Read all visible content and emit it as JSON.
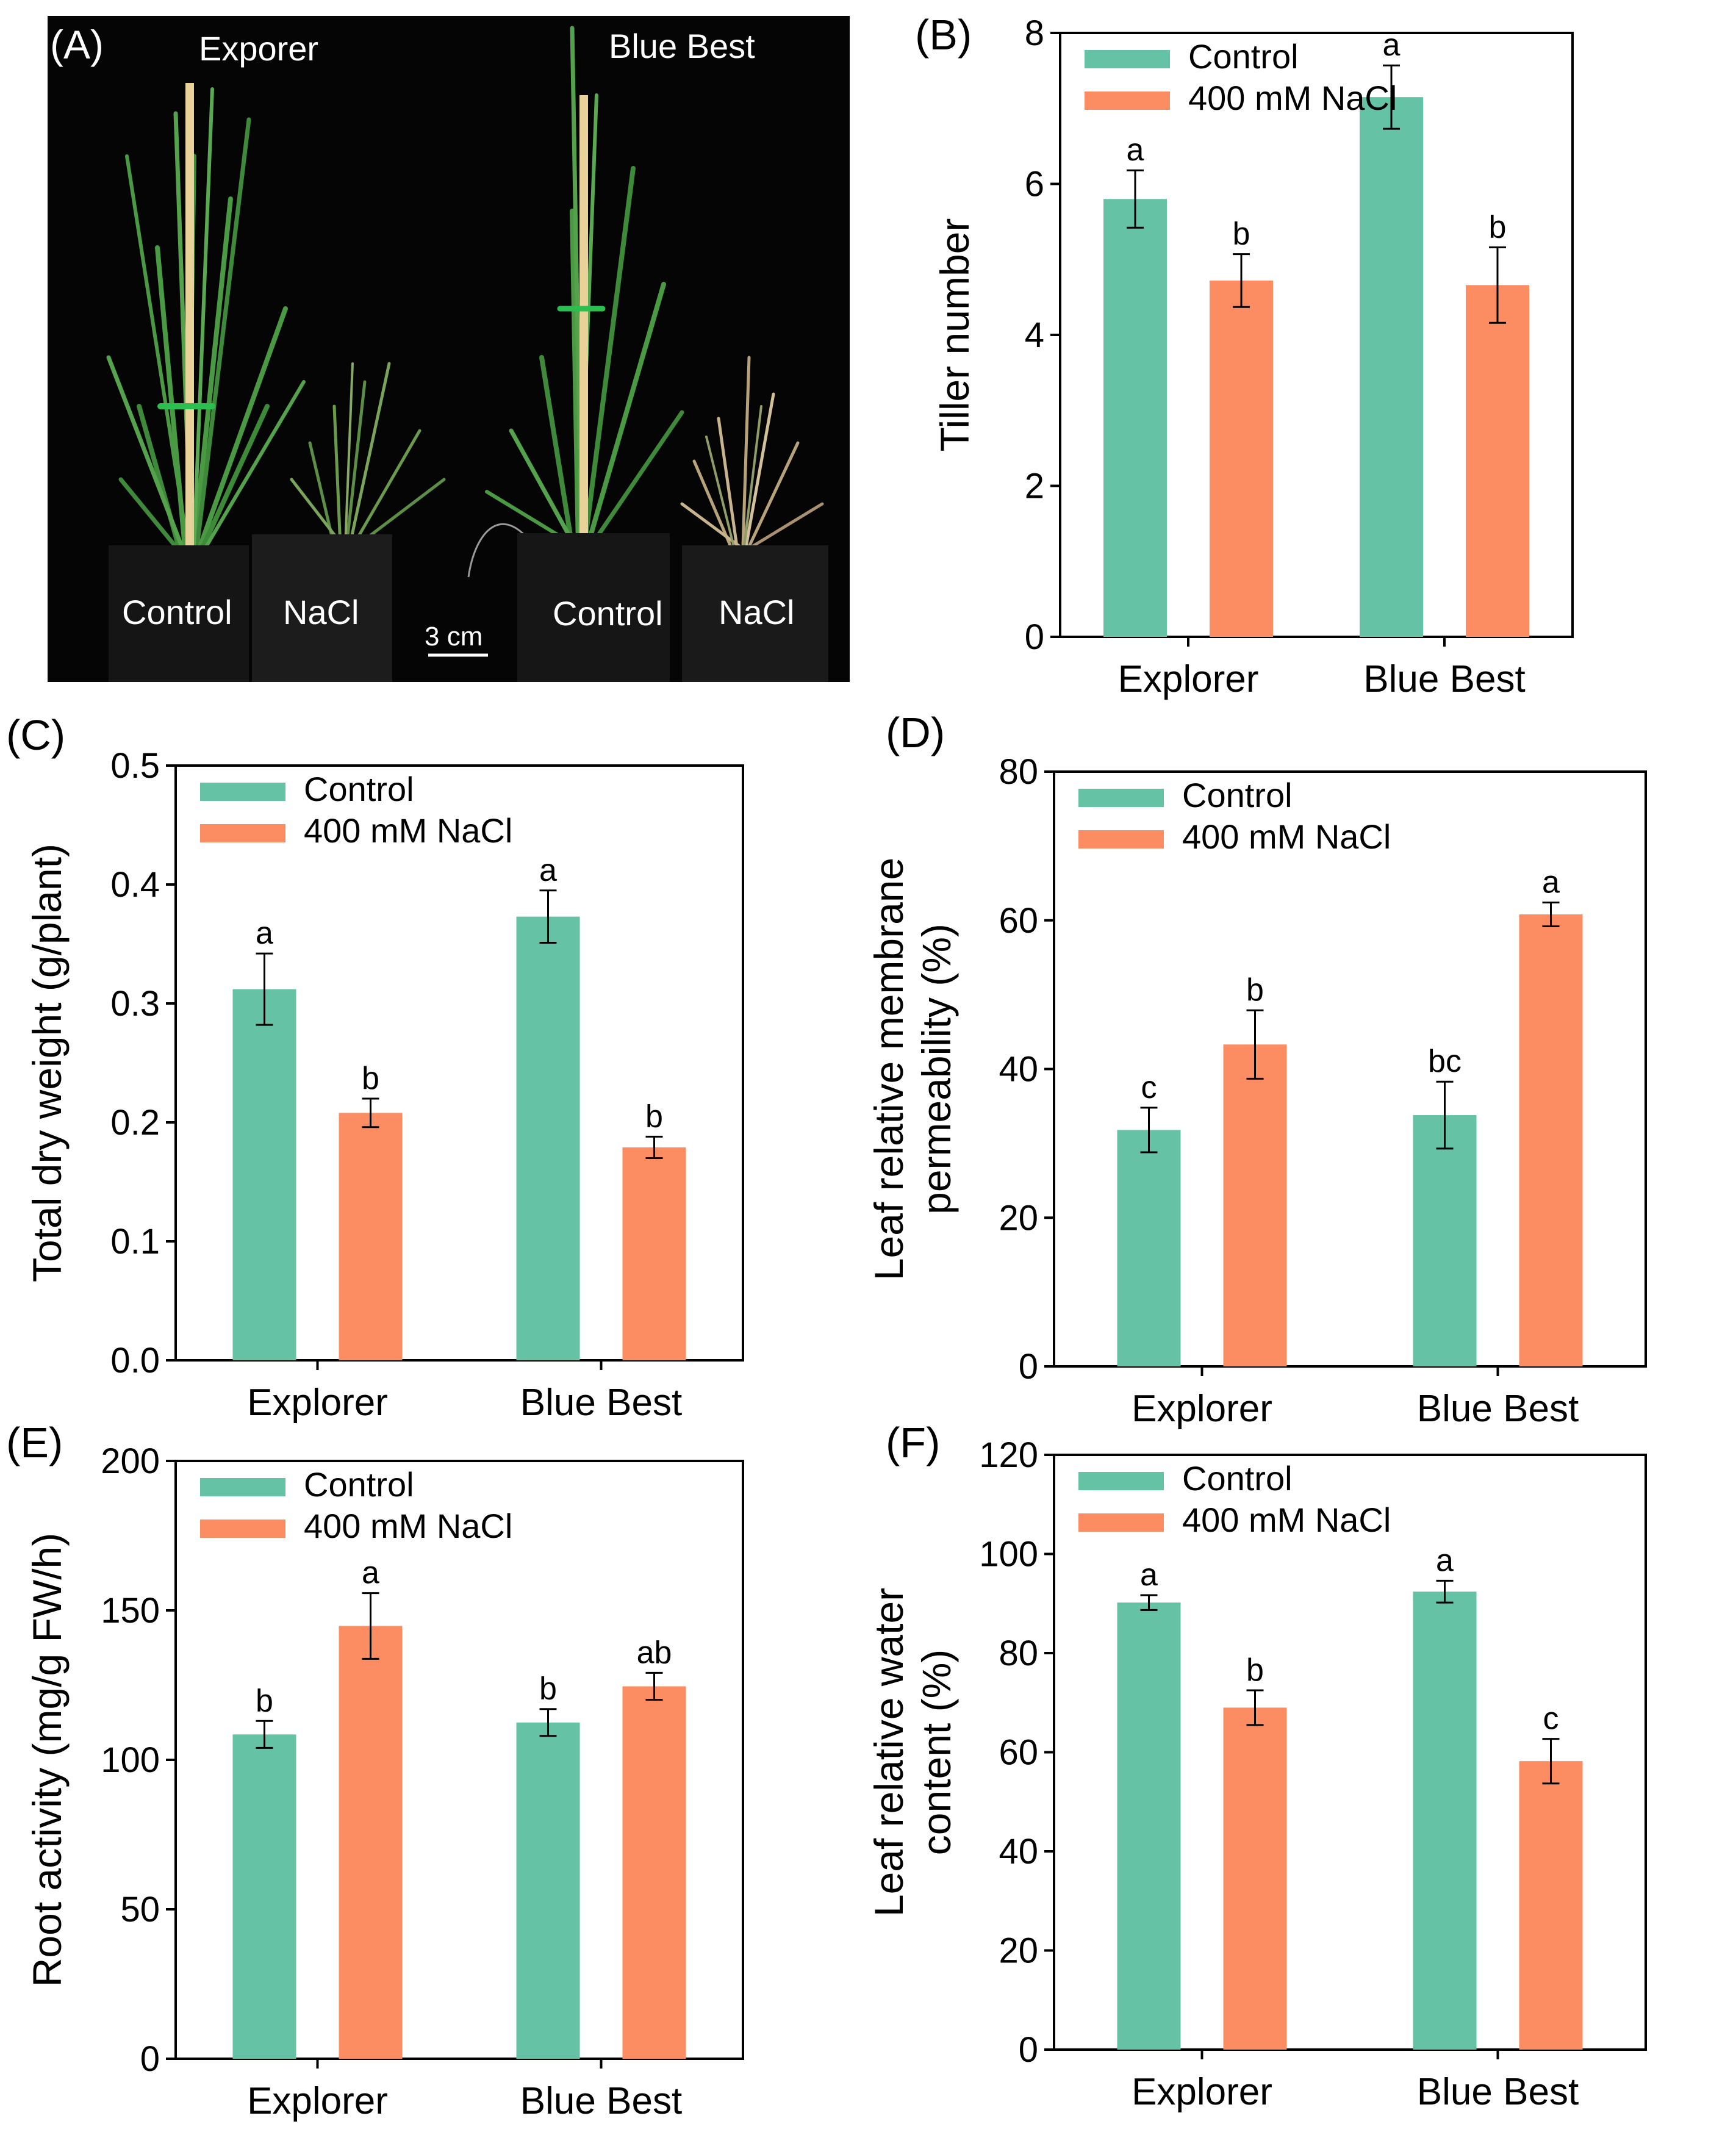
{
  "colors": {
    "control": "#66c2a5",
    "nacl": "#fc8d62",
    "axis": "#000000",
    "photo_bg": "#050505"
  },
  "photo_panel": {
    "panel_label": "(A)",
    "cultivar_left": "Exporer",
    "cultivar_right": "Blue Best",
    "pot_labels": [
      "Control",
      "NaCl",
      "Control",
      "NaCl"
    ],
    "scale_bar": "3 cm"
  },
  "chart_data": [
    {
      "id": "B",
      "panel_label": "(B)",
      "type": "bar",
      "categories": [
        "Explorer",
        "Blue Best"
      ],
      "series": [
        {
          "name": "Control",
          "values": [
            5.8,
            7.15
          ],
          "errors": [
            0.38,
            0.42
          ],
          "letters": [
            "a",
            "a"
          ]
        },
        {
          "name": "400 mM NaCl",
          "values": [
            4.72,
            4.66
          ],
          "errors": [
            0.35,
            0.5
          ],
          "letters": [
            "b",
            "b"
          ]
        }
      ],
      "ylabel": [
        "Tiller number"
      ],
      "ylim": [
        0,
        8
      ],
      "yticks": [
        0,
        2,
        4,
        6,
        8
      ],
      "legend": "top-left"
    },
    {
      "id": "C",
      "panel_label": "(C)",
      "type": "bar",
      "categories": [
        "Explorer",
        "Blue Best"
      ],
      "series": [
        {
          "name": "Control",
          "values": [
            0.312,
            0.373
          ],
          "errors": [
            0.03,
            0.022
          ],
          "letters": [
            "a",
            "a"
          ]
        },
        {
          "name": "400 mM NaCl",
          "values": [
            0.208,
            0.179
          ],
          "errors": [
            0.012,
            0.009
          ],
          "letters": [
            "b",
            "b"
          ]
        }
      ],
      "ylabel": [
        "Total dry weight (g/plant)"
      ],
      "ylim": [
        0,
        0.5
      ],
      "yticks": [
        "0.0",
        "0.1",
        "0.2",
        "0.3",
        "0.4",
        "0.5"
      ],
      "legend": "top-left"
    },
    {
      "id": "D",
      "panel_label": "(D)",
      "type": "bar",
      "categories": [
        "Explorer",
        "Blue Best"
      ],
      "series": [
        {
          "name": "Control",
          "values": [
            31.8,
            33.8
          ],
          "errors": [
            3.0,
            4.5
          ],
          "letters": [
            "c",
            "bc"
          ]
        },
        {
          "name": "400 mM NaCl",
          "values": [
            43.3,
            60.8
          ],
          "errors": [
            4.6,
            1.6
          ],
          "letters": [
            "b",
            "a"
          ]
        }
      ],
      "ylabel": [
        "Leaf relative membrane",
        "permeability (%)"
      ],
      "ylim": [
        0,
        80
      ],
      "yticks": [
        0,
        20,
        40,
        60,
        80
      ],
      "legend": "top-left"
    },
    {
      "id": "E",
      "panel_label": "(E)",
      "type": "bar",
      "categories": [
        "Explorer",
        "Blue Best"
      ],
      "series": [
        {
          "name": "Control",
          "values": [
            108.5,
            112.5
          ],
          "errors": [
            4.5,
            4.5
          ],
          "letters": [
            "b",
            "b"
          ]
        },
        {
          "name": "400 mM NaCl",
          "values": [
            144.8,
            124.6
          ],
          "errors": [
            11.0,
            4.5
          ],
          "letters": [
            "a",
            "ab"
          ]
        }
      ],
      "ylabel": [
        "Root activity (mg/g FW/h)"
      ],
      "ylim": [
        0,
        200
      ],
      "yticks": [
        0,
        50,
        100,
        150,
        200
      ],
      "legend": "top-left"
    },
    {
      "id": "F",
      "panel_label": "(F)",
      "type": "bar",
      "categories": [
        "Explorer",
        "Blue Best"
      ],
      "series": [
        {
          "name": "Control",
          "values": [
            90.2,
            92.4
          ],
          "errors": [
            1.5,
            2.2
          ],
          "letters": [
            "a",
            "a"
          ]
        },
        {
          "name": "400 mM NaCl",
          "values": [
            69.0,
            58.2
          ],
          "errors": [
            3.5,
            4.5
          ],
          "letters": [
            "b",
            "c"
          ]
        }
      ],
      "ylabel": [
        "Leaf relative water",
        "content (%)"
      ],
      "ylim": [
        0,
        120
      ],
      "yticks": [
        0,
        20,
        40,
        60,
        80,
        100,
        120
      ],
      "legend": "top-left"
    }
  ]
}
